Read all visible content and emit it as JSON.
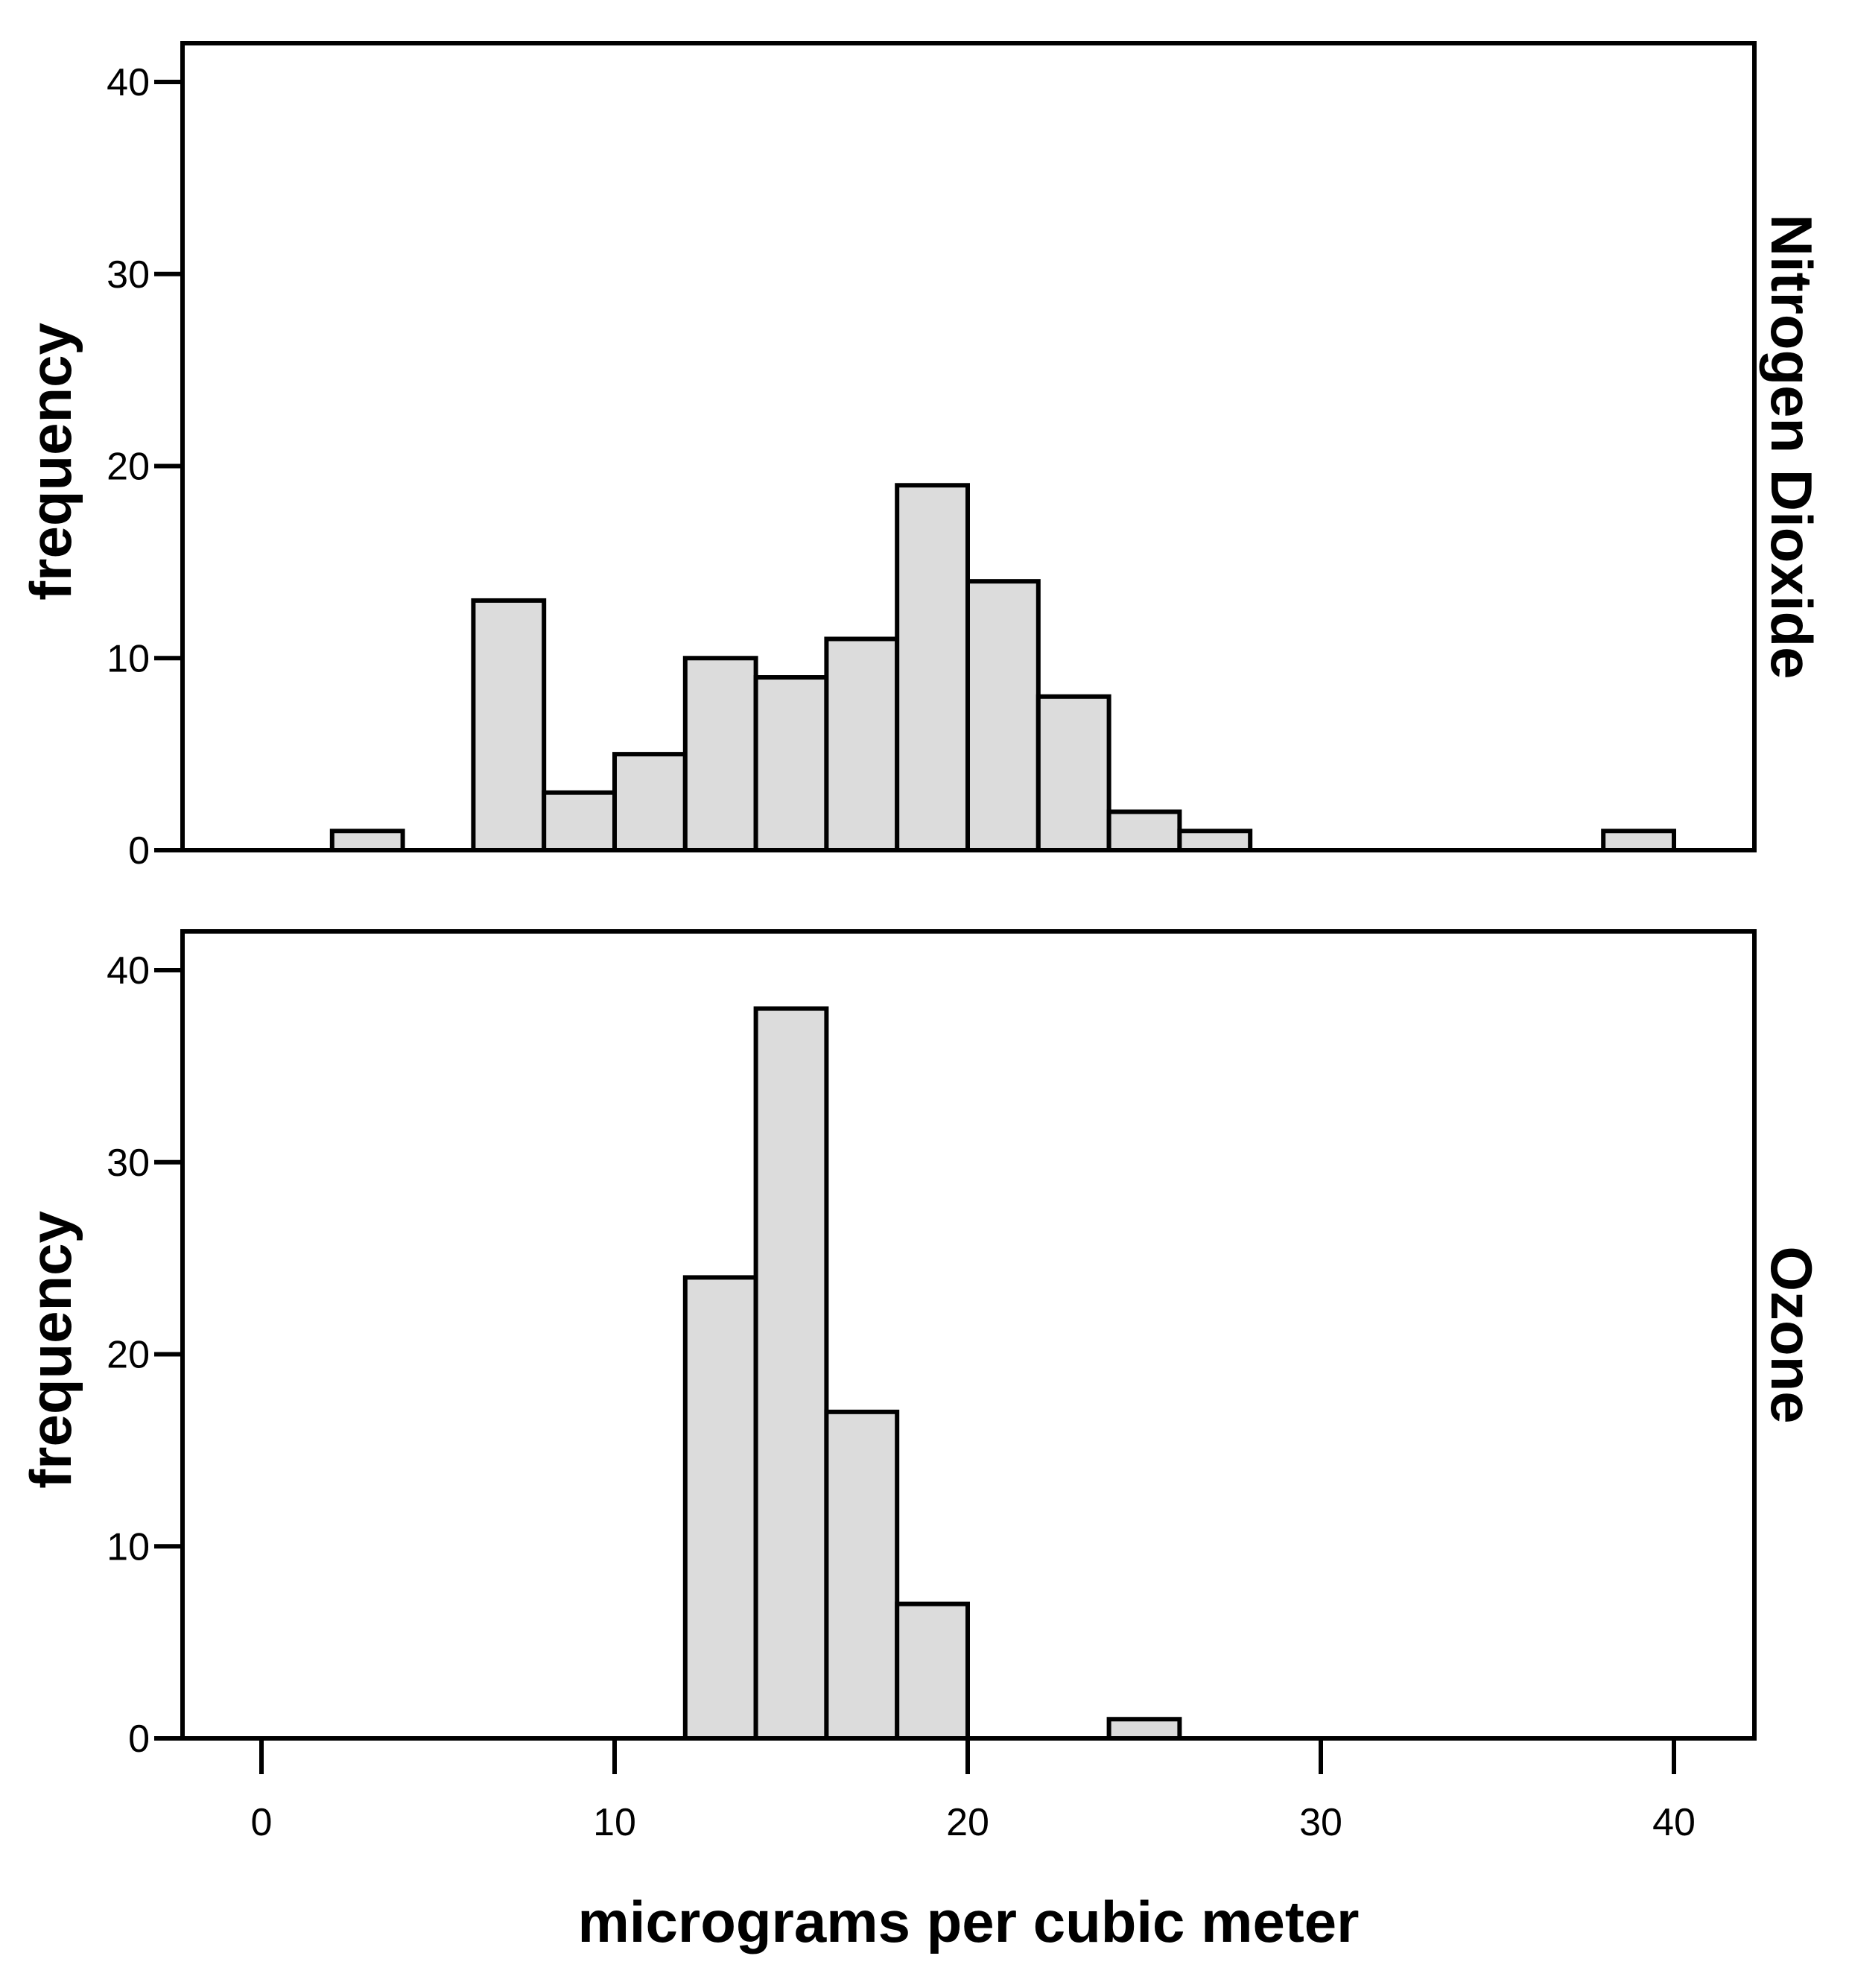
{
  "chart_data": {
    "type": "bar",
    "subtype": "histogram-facets",
    "xlabel": "micrograms per cubic meter",
    "ylabel": "frequency",
    "xlim": [
      -2.2,
      42.2
    ],
    "ylim": [
      0,
      42
    ],
    "bin_width": 2,
    "x_ticks": [
      0,
      10,
      20,
      30,
      40
    ],
    "y_ticks": [
      0,
      10,
      20,
      30,
      40
    ],
    "bar_fill": "#dcdcdc",
    "bar_stroke": "#000000",
    "grid": false,
    "panels": [
      {
        "name": "Nitrogen Dioxide",
        "bins": [
          {
            "start": 2,
            "end": 4,
            "count": 1
          },
          {
            "start": 6,
            "end": 8,
            "count": 13
          },
          {
            "start": 8,
            "end": 10,
            "count": 3
          },
          {
            "start": 10,
            "end": 12,
            "count": 5
          },
          {
            "start": 12,
            "end": 14,
            "count": 10
          },
          {
            "start": 14,
            "end": 16,
            "count": 9
          },
          {
            "start": 16,
            "end": 18,
            "count": 11
          },
          {
            "start": 18,
            "end": 20,
            "count": 19
          },
          {
            "start": 20,
            "end": 22,
            "count": 14
          },
          {
            "start": 22,
            "end": 24,
            "count": 8
          },
          {
            "start": 24,
            "end": 26,
            "count": 2
          },
          {
            "start": 26,
            "end": 28,
            "count": 1
          },
          {
            "start": 38,
            "end": 40,
            "count": 1
          }
        ]
      },
      {
        "name": "Ozone",
        "bins": [
          {
            "start": 12,
            "end": 14,
            "count": 24
          },
          {
            "start": 14,
            "end": 16,
            "count": 38
          },
          {
            "start": 16,
            "end": 18,
            "count": 17
          },
          {
            "start": 18,
            "end": 20,
            "count": 7
          },
          {
            "start": 24,
            "end": 26,
            "count": 1
          }
        ]
      }
    ]
  }
}
